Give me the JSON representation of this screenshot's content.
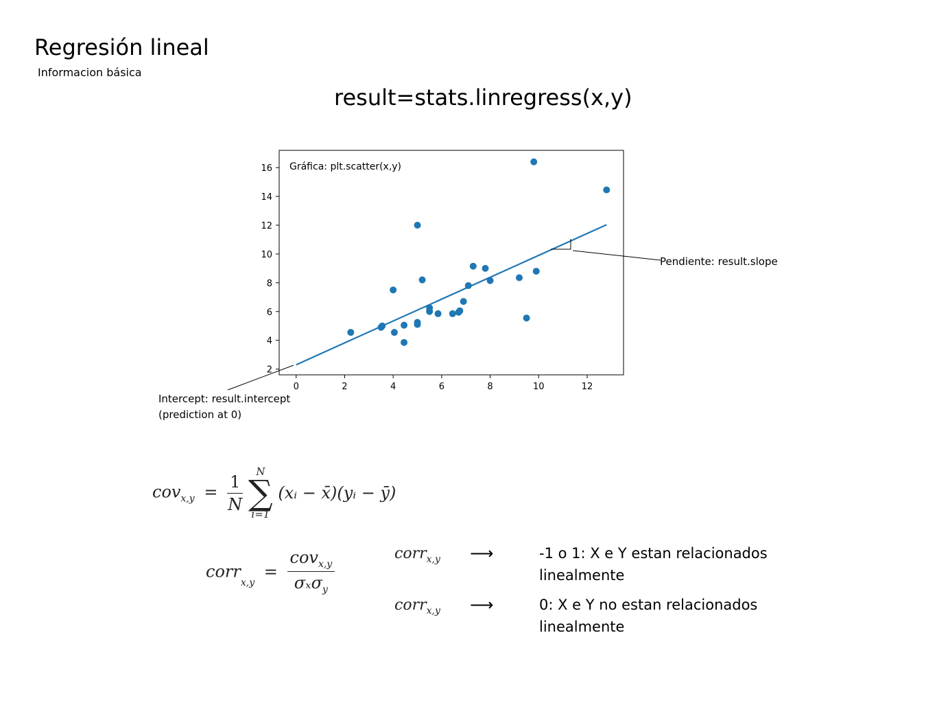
{
  "header": {
    "title": "Regresión lineal",
    "subtitle": "Informacion básica",
    "code": "result=stats.linregress(x,y)"
  },
  "chart_data": {
    "type": "scatter",
    "title": "Gráfica: plt.scatter(x,y)",
    "xlabel": "",
    "ylabel": "",
    "xlim": [
      -0.7,
      13.5
    ],
    "ylim": [
      1.6,
      17.2
    ],
    "xticks": [
      0,
      2,
      4,
      6,
      8,
      10,
      12
    ],
    "yticks": [
      2,
      4,
      6,
      8,
      10,
      12,
      14,
      16
    ],
    "grid": false,
    "series": [
      {
        "points": [
          [
            2.25,
            4.55
          ],
          [
            3.5,
            4.9
          ],
          [
            3.55,
            5.0
          ],
          [
            4.0,
            7.5
          ],
          [
            4.05,
            4.55
          ],
          [
            4.45,
            5.05
          ],
          [
            4.45,
            3.85
          ],
          [
            5.0,
            5.1
          ],
          [
            5.0,
            5.25
          ],
          [
            5.0,
            12.0
          ],
          [
            5.2,
            8.2
          ],
          [
            5.5,
            6.0
          ],
          [
            5.5,
            6.25
          ],
          [
            5.85,
            5.85
          ],
          [
            6.45,
            5.85
          ],
          [
            6.7,
            5.95
          ],
          [
            6.75,
            6.05
          ],
          [
            6.9,
            6.7
          ],
          [
            7.1,
            7.8
          ],
          [
            7.3,
            9.15
          ],
          [
            7.8,
            9.0
          ],
          [
            8.0,
            8.15
          ],
          [
            9.2,
            8.35
          ],
          [
            9.5,
            5.55
          ],
          [
            9.8,
            16.4
          ],
          [
            9.9,
            8.8
          ],
          [
            12.8,
            14.45
          ]
        ]
      }
    ],
    "regression": {
      "intercept": 2.3,
      "slope": 0.76,
      "x_range": [
        0,
        12.8
      ]
    },
    "colors": {
      "marker": "#1f77b4",
      "line": "#1f77b4"
    }
  },
  "annotations": {
    "slope": "Pendiente: result.slope",
    "intercept_1": "Intercept: result.intercept",
    "intercept_2": "(prediction at 0)"
  },
  "formulas": {
    "cov_lhs": "cov",
    "cov_sub": "x,y",
    "eq": "=",
    "one": "1",
    "N": "N",
    "sum_top": "N",
    "sum_bottom": "i=1",
    "cov_body": "(xᵢ − x̄)(yᵢ − ȳ)",
    "corr_lhs": "corr",
    "corr_sub": "x,y",
    "corr_num": "cov",
    "corr_num_sub": "x,y",
    "corr_den": "σₓσ",
    "corr_den_sub": "y"
  },
  "relations": [
    {
      "lhs": "corr",
      "sub": "x,y",
      "arrow": "⟶",
      "text": "-1 o 1: X e Y estan relacionados linealmente"
    },
    {
      "lhs": "corr",
      "sub": "x,y",
      "arrow": "⟶",
      "text": "0: X e Y no estan relacionados linealmente"
    }
  ]
}
